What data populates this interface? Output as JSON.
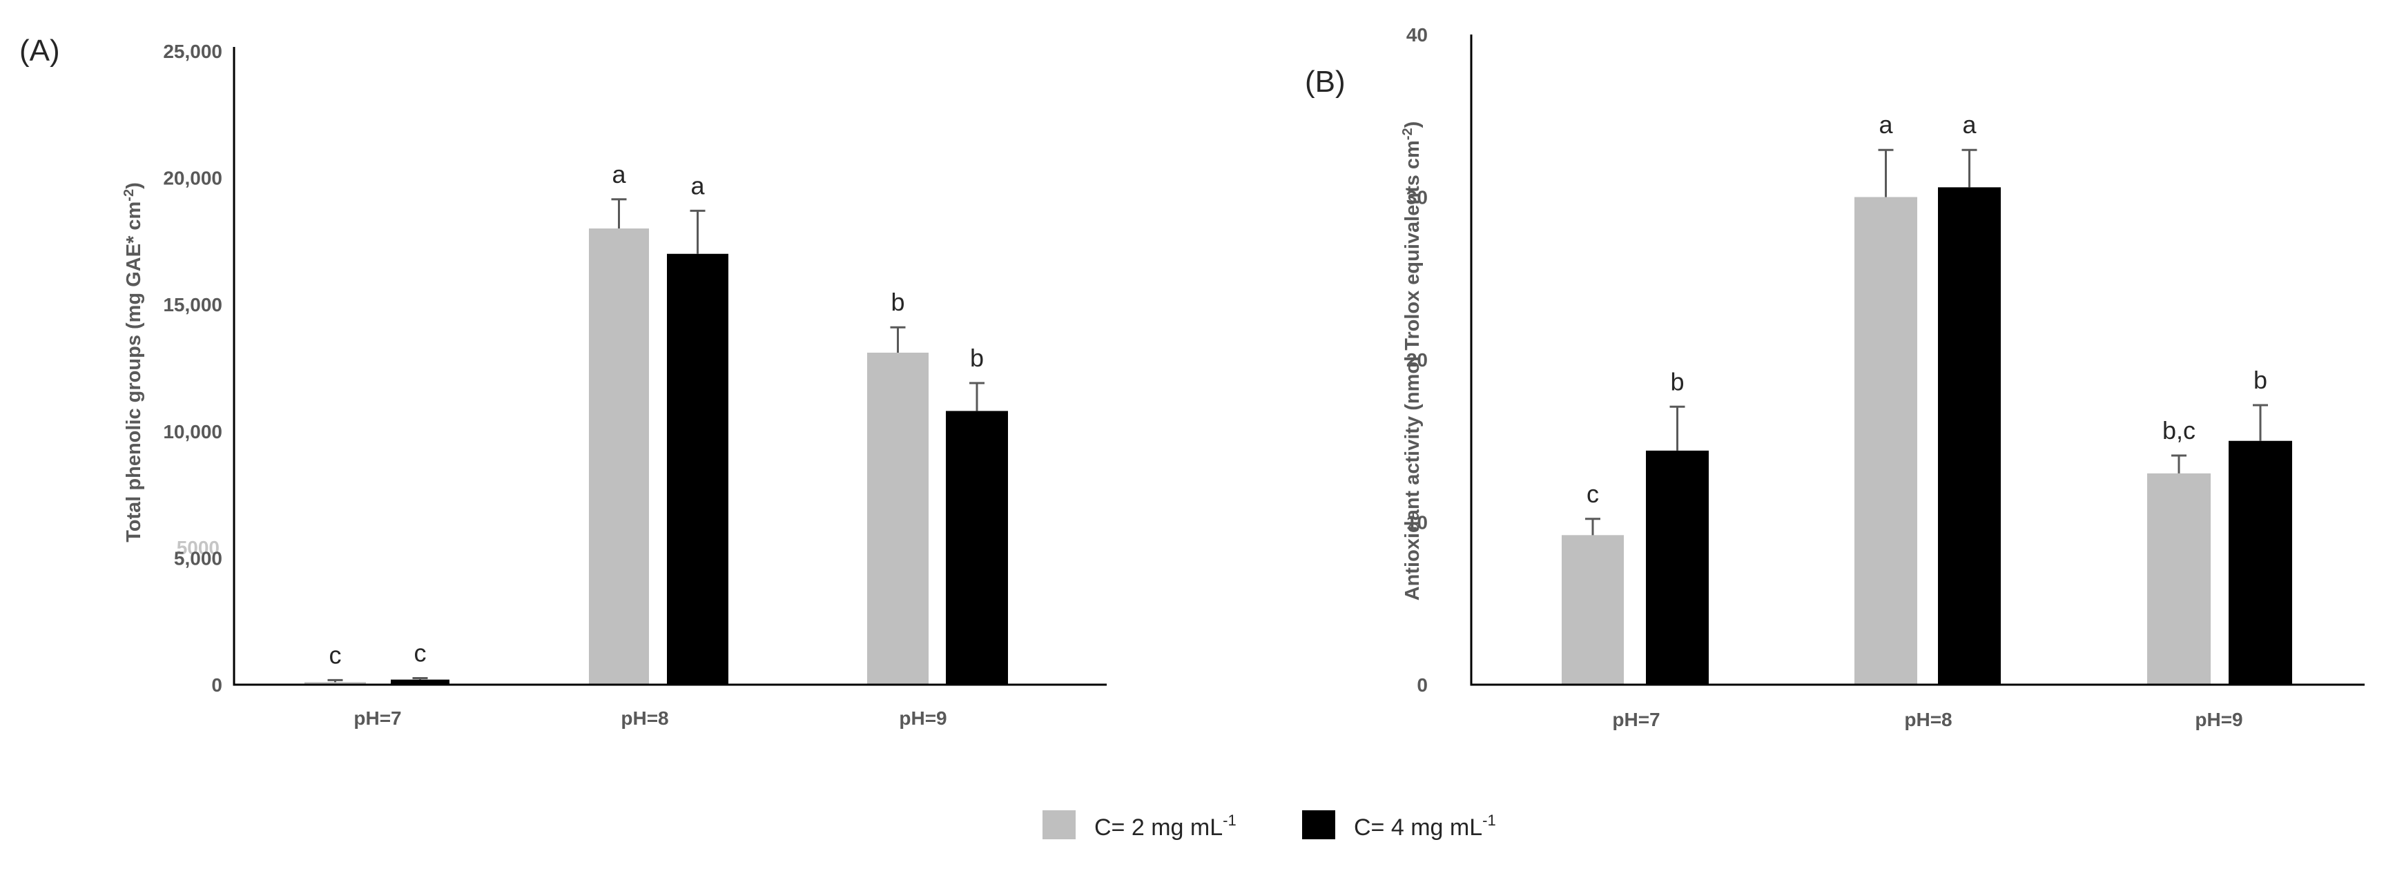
{
  "chart_data": [
    {
      "type": "bar",
      "panel_label": "(A)",
      "title": "",
      "xlabel": "",
      "ylabel": "Total phenolic groups (mg GAE* cm",
      "ylabel_sup": "-2",
      "ylabel_tail": ")",
      "ylim": [
        0,
        25000
      ],
      "yticks": [
        0,
        5000,
        10000,
        15000,
        20000,
        25000
      ],
      "ytick_labels": [
        "0",
        "5,000",
        "10,000",
        "15,000",
        "20,000",
        "25,000"
      ],
      "stray_tick_text": "5000",
      "categories": [
        "pH=7",
        "pH=8",
        "pH=9"
      ],
      "series": [
        {
          "name": "C= 2 mg mL-1",
          "color": "#bfbfbf",
          "values": [
            100,
            18000,
            13100
          ],
          "errors": [
            80,
            1150,
            1000
          ],
          "labels": [
            "c",
            "a",
            "b"
          ]
        },
        {
          "name": "C= 4 mg mL-1",
          "color": "#000000",
          "values": [
            200,
            17000,
            10800
          ],
          "errors": [
            60,
            1700,
            1100
          ],
          "labels": [
            "c",
            "a",
            "b"
          ]
        }
      ],
      "grid": false
    },
    {
      "type": "bar",
      "panel_label": "(B)",
      "title": "",
      "xlabel": "",
      "ylabel": "Antioxidant activity (nmol Trolox equivalents cm",
      "ylabel_sup": "-2",
      "ylabel_tail": ")",
      "ylim": [
        0,
        40
      ],
      "yticks": [
        0,
        10,
        20,
        30,
        40
      ],
      "ytick_labels": [
        "0",
        "10",
        "20",
        "30",
        "40"
      ],
      "categories": [
        "pH=7",
        "pH=8",
        "pH=9"
      ],
      "series": [
        {
          "name": "C= 2 mg mL-1",
          "color": "#bfbfbf",
          "values": [
            9.2,
            30.0,
            13.0
          ],
          "errors": [
            1.0,
            2.9,
            1.1
          ],
          "labels": [
            "c",
            "a",
            "b,c"
          ]
        },
        {
          "name": "C= 4 mg mL-1",
          "color": "#000000",
          "values": [
            14.4,
            30.6,
            15.0
          ],
          "errors": [
            2.7,
            2.3,
            2.2
          ],
          "labels": [
            "b",
            "a",
            "b"
          ]
        }
      ],
      "grid": false
    }
  ],
  "legend": {
    "position": "bottom-center",
    "items": [
      {
        "text": "C= 2 mg mL",
        "sup": "-1",
        "color": "#bfbfbf"
      },
      {
        "text": "C= 4 mg mL",
        "sup": "-1",
        "color": "#000000"
      }
    ]
  }
}
